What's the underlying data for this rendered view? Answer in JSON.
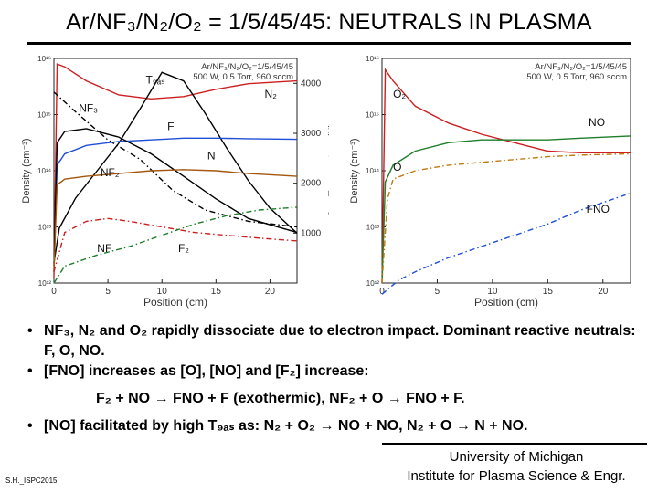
{
  "slide": {
    "title": "Ar/NF₃/N₂/O₂ = 1/5/45/45: NEUTRALS IN PLASMA",
    "bullets": [
      "NF₃, N₂ and O₂ rapidly dissociate due to electron impact. Dominant reactive neutrals: F, O, NO.",
      "[FNO] increases as [O], [NO] and [F₂] increase:"
    ],
    "equations": "F₂ + NO → FNO + F (exothermic),     NF₂ + O → FNO + F.",
    "bullet3": "[NO] facilitated by high T₉ₐₛ as:  N₂ + O₂ → NO + NO,  N₂ + O → N + NO.",
    "footer": [
      "University of Michigan",
      "Institute for Plasma Science & Engr."
    ],
    "credit": "S.H._ISPC2015"
  },
  "chart_data": [
    {
      "type": "line",
      "inset": [
        "Ar/NF₃/N₂/O₂=1/5/45/45",
        "500 W, 0.5 Torr, 960 sccm"
      ],
      "xlabel": "Position (cm)",
      "ylabel": "Density (cm⁻³)",
      "y2label": "Gas Temperature (K)",
      "xlim": [
        0,
        22.5
      ],
      "ylim_log10": [
        12,
        16
      ],
      "y2lim": [
        0,
        4500
      ],
      "x_ticks": [
        "0",
        "5",
        "10",
        "15",
        "20"
      ],
      "y_ticks": [
        "10¹²",
        "10¹³",
        "10¹⁴",
        "10¹⁵",
        "10¹⁶"
      ],
      "y2_ticks": [
        "1000",
        "2000",
        "3000",
        "4000"
      ],
      "series": [
        {
          "name": "N₂",
          "color": "#cc1f1f",
          "dash": "",
          "labelx": 19.5,
          "labely": 15.3,
          "x": [
            0,
            0.3,
            1,
            3,
            6,
            9,
            12,
            15,
            18,
            22.5
          ],
          "y": [
            12.1,
            15.9,
            15.85,
            15.6,
            15.35,
            15.28,
            15.32,
            15.45,
            15.55,
            15.6
          ]
        },
        {
          "name": "T₉ₐₛ",
          "color": "#000000",
          "dash": "",
          "axis": "right",
          "labelx": 8.5,
          "labely": 4000,
          "x": [
            0,
            0.5,
            2,
            4,
            6,
            8,
            10,
            12,
            14,
            16,
            18,
            20,
            22.5
          ],
          "y": [
            400,
            1100,
            1700,
            2250,
            2800,
            3500,
            4220,
            4050,
            3400,
            2700,
            2050,
            1500,
            1000
          ]
        },
        {
          "name": "NF₃",
          "color": "#000000",
          "dash": "6,3,1.5,3",
          "labelx": 2.3,
          "labely": 15.05,
          "x": [
            0,
            2,
            5,
            8,
            11,
            14,
            18,
            22.5
          ],
          "y": [
            15.4,
            15.05,
            14.55,
            14.2,
            13.65,
            13.3,
            13.1,
            13.0
          ]
        },
        {
          "name": "F",
          "color": "#1f4fd6",
          "dash": "",
          "labelx": 10.5,
          "labely": 14.72,
          "x": [
            0,
            0.3,
            1,
            3,
            6,
            9,
            12,
            15,
            18,
            22.5
          ],
          "y": [
            12.2,
            14.1,
            14.3,
            14.45,
            14.52,
            14.55,
            14.58,
            14.58,
            14.57,
            14.56
          ]
        },
        {
          "name": "N",
          "color": "#000000",
          "dash": "",
          "labelx": 14.2,
          "labely": 14.2,
          "x": [
            0,
            0.3,
            1,
            3,
            6,
            9,
            12,
            15,
            18,
            22.5
          ],
          "y": [
            12.3,
            14.5,
            14.7,
            14.75,
            14.6,
            14.3,
            13.9,
            13.5,
            13.15,
            12.9
          ]
        },
        {
          "name": "NF₂",
          "color": "#a3580f",
          "dash": "",
          "labelx": 4.3,
          "labely": 13.9,
          "x": [
            0,
            0.3,
            1,
            3,
            6,
            9,
            12,
            15,
            18,
            22.5
          ],
          "y": [
            12.2,
            13.75,
            13.85,
            13.9,
            13.95,
            14.0,
            14.02,
            14.0,
            13.95,
            13.9
          ]
        },
        {
          "name": "NF",
          "color": "#cc1f1f",
          "dash": "6,3,1.5,3",
          "labelx": 4.0,
          "labely": 12.55,
          "x": [
            0,
            1,
            3,
            5,
            7,
            10,
            13,
            16,
            19,
            22.5
          ],
          "y": [
            12.2,
            12.9,
            13.1,
            13.15,
            13.1,
            13.0,
            12.9,
            12.85,
            12.8,
            12.75
          ]
        },
        {
          "name": "F₂",
          "color": "#1e7e2a",
          "dash": "6,3,1.5,3",
          "labelx": 11.5,
          "labely": 12.55,
          "x": [
            0,
            1,
            4,
            7,
            10,
            13,
            16,
            19,
            22.5
          ],
          "y": [
            12.0,
            12.3,
            12.5,
            12.65,
            12.85,
            13.05,
            13.2,
            13.3,
            13.35
          ]
        }
      ]
    },
    {
      "type": "line",
      "inset": [
        "Ar/NF₃/N₂/O₂=1/5/45/45",
        "500 W, 0.5 Torr, 960 sccm"
      ],
      "xlabel": "Position (cm)",
      "ylabel": "Density (cm⁻³)",
      "xlim": [
        0,
        22.5
      ],
      "ylim_log10": [
        12,
        16
      ],
      "x_ticks": [
        "0",
        "5",
        "10",
        "15",
        "20"
      ],
      "y_ticks": [
        "10¹²",
        "10¹³",
        "10¹⁴",
        "10¹⁵",
        "10¹⁶"
      ],
      "series": [
        {
          "name": "O₂",
          "color": "#cc1f1f",
          "dash": "",
          "labelx": 1.0,
          "labely": 15.3,
          "x": [
            0,
            0.3,
            1,
            3,
            6,
            9,
            12,
            15,
            18,
            22.5
          ],
          "y": [
            12.0,
            15.8,
            15.6,
            15.15,
            14.85,
            14.65,
            14.5,
            14.35,
            14.32,
            14.32
          ]
        },
        {
          "name": "NO",
          "color": "#1e7e2a",
          "dash": "",
          "labelx": 18.7,
          "labely": 14.8,
          "x": [
            0,
            0.3,
            1,
            3,
            6,
            9,
            12,
            15,
            18,
            22.5
          ],
          "y": [
            12.0,
            13.8,
            14.1,
            14.35,
            14.5,
            14.55,
            14.55,
            14.55,
            14.58,
            14.62
          ]
        },
        {
          "name": "O",
          "color": "#c07a12",
          "dash": "6,3,1.5,3",
          "labelx": 1.0,
          "labely": 14.0,
          "x": [
            0,
            0.5,
            1,
            3,
            6,
            9,
            12,
            15,
            18,
            22.5
          ],
          "y": [
            12.0,
            13.5,
            13.85,
            14.0,
            14.1,
            14.15,
            14.2,
            14.25,
            14.28,
            14.3
          ]
        },
        {
          "name": "FNO",
          "color": "#1f4fd6",
          "dash": "6,3,1.5,3",
          "labelx": 18.5,
          "labely": 13.25,
          "x": [
            0,
            1.5,
            3,
            6,
            9,
            12,
            15,
            18,
            22.5
          ],
          "y": [
            11.8,
            12.05,
            12.2,
            12.45,
            12.65,
            12.85,
            13.05,
            13.3,
            13.6
          ]
        }
      ]
    }
  ]
}
